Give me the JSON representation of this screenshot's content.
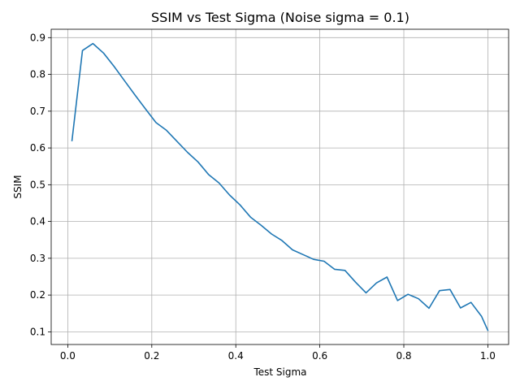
{
  "chart_data": {
    "type": "line",
    "title": "SSIM vs Test Sigma (Noise sigma = 0.1)",
    "xlabel": "Test Sigma",
    "ylabel": "SSIM",
    "xlim": [
      -0.0395,
      1.0495
    ],
    "ylim": [
      0.0655,
      0.9228
    ],
    "xticks": [
      "0.0",
      "0.2",
      "0.4",
      "0.6",
      "0.8",
      "1.0"
    ],
    "xtick_values": [
      0.0,
      0.2,
      0.4,
      0.6,
      0.8,
      1.0
    ],
    "yticks": [
      "0.1",
      "0.2",
      "0.3",
      "0.4",
      "0.5",
      "0.6",
      "0.7",
      "0.8",
      "0.9"
    ],
    "ytick_values": [
      0.1,
      0.2,
      0.3,
      0.4,
      0.5,
      0.6,
      0.7,
      0.8,
      0.9
    ],
    "grid": true,
    "series": [
      {
        "color": "#1f77b4",
        "x": [
          0.01,
          0.035,
          0.06,
          0.085,
          0.11,
          0.135,
          0.16,
          0.185,
          0.21,
          0.235,
          0.26,
          0.285,
          0.31,
          0.335,
          0.36,
          0.385,
          0.41,
          0.435,
          0.46,
          0.485,
          0.51,
          0.535,
          0.56,
          0.585,
          0.61,
          0.635,
          0.66,
          0.685,
          0.71,
          0.735,
          0.76,
          0.785,
          0.81,
          0.835,
          0.86,
          0.885,
          0.91,
          0.935,
          0.96,
          0.985,
          1.0
        ],
        "y": [
          0.62,
          0.865,
          0.884,
          0.858,
          0.822,
          0.783,
          0.744,
          0.706,
          0.669,
          0.648,
          0.618,
          0.588,
          0.562,
          0.528,
          0.505,
          0.472,
          0.445,
          0.412,
          0.39,
          0.366,
          0.348,
          0.323,
          0.31,
          0.297,
          0.292,
          0.27,
          0.267,
          0.235,
          0.206,
          0.233,
          0.249,
          0.185,
          0.202,
          0.19,
          0.164,
          0.212,
          0.215,
          0.165,
          0.18,
          0.142,
          0.104
        ]
      }
    ]
  }
}
